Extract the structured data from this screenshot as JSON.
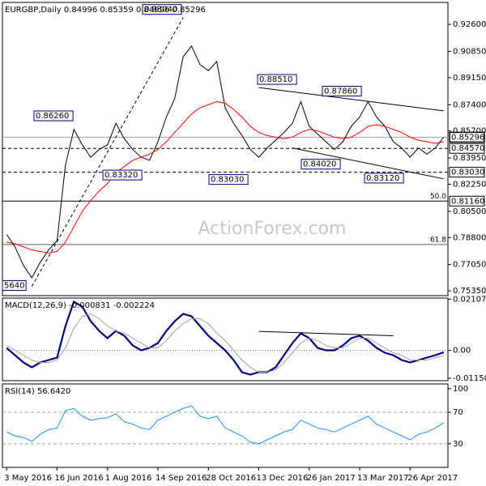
{
  "chart_data": [
    {
      "type": "line",
      "title": "EURGBP,Daily  0.84996 0.85359 0.84996 0.85296",
      "watermark": "ActionForex.com",
      "ylim": [
        0.7504,
        0.9402
      ],
      "yticks": [
        {
          "value": 0.926,
          "label": "0.92600"
        },
        {
          "value": 0.9085,
          "label": "0.90850"
        },
        {
          "value": 0.8915,
          "label": "0.89150"
        },
        {
          "value": 0.874,
          "label": "0.87400"
        },
        {
          "value": 0.857,
          "label": "0.85700"
        },
        {
          "value": 0.8395,
          "label": "0.83950"
        },
        {
          "value": 0.8225,
          "label": "0.82250"
        },
        {
          "value": 0.805,
          "label": "0.80500"
        },
        {
          "value": 0.788,
          "label": "0.78800"
        },
        {
          "value": 0.7705,
          "label": "0.77050"
        },
        {
          "value": 0.7535,
          "label": "0.75350"
        }
      ],
      "series": [
        {
          "name": "Close",
          "color": "#000000",
          "values": [
            0.79,
            0.782,
            0.77,
            0.762,
            0.772,
            0.78,
            0.786,
            0.835,
            0.858,
            0.848,
            0.84,
            0.845,
            0.848,
            0.862,
            0.852,
            0.845,
            0.84,
            0.838,
            0.85,
            0.866,
            0.878,
            0.905,
            0.912,
            0.9,
            0.896,
            0.902,
            0.872,
            0.862,
            0.854,
            0.845,
            0.84,
            0.846,
            0.851,
            0.856,
            0.862,
            0.876,
            0.86,
            0.855,
            0.85,
            0.845,
            0.85,
            0.86,
            0.866,
            0.876,
            0.866,
            0.86,
            0.85,
            0.846,
            0.84,
            0.846,
            0.842,
            0.846,
            0.853
          ]
        },
        {
          "name": "SMA",
          "color": "#ff0000",
          "values": [
            0.785,
            0.784,
            0.782,
            0.78,
            0.779,
            0.778,
            0.779,
            0.785,
            0.795,
            0.805,
            0.812,
            0.818,
            0.823,
            0.83,
            0.834,
            0.838,
            0.84,
            0.842,
            0.845,
            0.85,
            0.856,
            0.862,
            0.868,
            0.872,
            0.874,
            0.876,
            0.875,
            0.871,
            0.866,
            0.86,
            0.856,
            0.854,
            0.853,
            0.852,
            0.853,
            0.856,
            0.858,
            0.857,
            0.855,
            0.853,
            0.852,
            0.853,
            0.856,
            0.86,
            0.861,
            0.86,
            0.858,
            0.856,
            0.853,
            0.851,
            0.85,
            0.849,
            0.85
          ]
        }
      ],
      "levels": [
        {
          "value": 0.85296,
          "style": "solid",
          "color": "#a0a0a0"
        },
        {
          "value": 0.8457,
          "style": "dashed",
          "color": "#000000"
        },
        {
          "value": 0.8303,
          "style": "dashed",
          "color": "#000000"
        },
        {
          "value": 0.8116,
          "style": "solid",
          "color": "#000000"
        },
        {
          "value": 0.7835,
          "style": "solid",
          "color": "#606060"
        }
      ],
      "fib_labels": [
        {
          "value": 0.8116,
          "label": "50.0"
        },
        {
          "value": 0.7835,
          "label": "61.8"
        }
      ],
      "trendlines": [
        {
          "from": [
            3,
            0.7564
          ],
          "to": [
            21,
            0.9304
          ],
          "style": "dashed"
        },
        {
          "from": [
            30,
            0.8851
          ],
          "to": [
            52,
            0.87
          ],
          "style": "solid"
        },
        {
          "from": [
            34,
            0.846
          ],
          "to": [
            52,
            0.826
          ],
          "style": "solid"
        }
      ],
      "annotations": [
        {
          "value": 0.9304,
          "label": "0.93040"
        },
        {
          "value": 0.8626,
          "label": "0.86260"
        },
        {
          "value": 0.8332,
          "label": "0.83320"
        },
        {
          "value": 0.8303,
          "label": "0.83030"
        },
        {
          "value": 0.8851,
          "label": "0.88510"
        },
        {
          "value": 0.8786,
          "label": "0.87860"
        },
        {
          "value": 0.8402,
          "label": "0.84020"
        },
        {
          "value": 0.8312,
          "label": "0.83120"
        },
        {
          "value": 0.7564,
          "label": "5640"
        }
      ],
      "price_markers": [
        {
          "value": 0.85296,
          "label": "0.85296"
        },
        {
          "value": 0.8457,
          "label": "0.84570"
        },
        {
          "value": 0.8303,
          "label": "0.83030"
        },
        {
          "value": 0.8116,
          "label": "0.81160"
        }
      ]
    },
    {
      "type": "line",
      "title": "MACD(12,26,9) -0.000831 -0.002224",
      "ylim": [
        -0.0125,
        0.0215
      ],
      "yticks": [
        0.021074,
        {
          "value": 0,
          "label": "0.00"
        },
        -0.011507
      ],
      "series": [
        {
          "name": "MACD",
          "color": "#000080",
          "values": [
            0.001,
            -0.002,
            -0.005,
            -0.007,
            -0.005,
            -0.004,
            -0.003,
            0.01,
            0.02,
            0.018,
            0.012,
            0.008,
            0.005,
            0.008,
            0.006,
            0.002,
            0.0,
            0.001,
            0.003,
            0.008,
            0.012,
            0.015,
            0.014,
            0.01,
            0.006,
            0.003,
            0.0,
            -0.004,
            -0.009,
            -0.01,
            -0.009,
            -0.009,
            -0.007,
            -0.002,
            0.003,
            0.007,
            0.005,
            0.001,
            0.0,
            0.0,
            0.002,
            0.005,
            0.006,
            0.004,
            0.001,
            -0.001,
            -0.002,
            -0.004,
            -0.005,
            -0.004,
            -0.003,
            -0.002,
            -0.0008
          ]
        },
        {
          "name": "Signal",
          "color": "#a0a0a0",
          "values": [
            0.002,
            0.0,
            -0.002,
            -0.004,
            -0.005,
            -0.005,
            -0.004,
            0.001,
            0.009,
            0.014,
            0.015,
            0.013,
            0.01,
            0.008,
            0.007,
            0.005,
            0.003,
            0.001,
            0.001,
            0.004,
            0.008,
            0.011,
            0.013,
            0.013,
            0.011,
            0.007,
            0.004,
            0.0,
            -0.004,
            -0.007,
            -0.009,
            -0.009,
            -0.008,
            -0.005,
            -0.001,
            0.003,
            0.005,
            0.004,
            0.002,
            0.001,
            0.001,
            0.003,
            0.005,
            0.005,
            0.003,
            0.001,
            -0.001,
            -0.002,
            -0.004,
            -0.004,
            -0.004,
            -0.003,
            -0.0022
          ]
        }
      ],
      "levels": [
        {
          "value": 0,
          "style": "dotted",
          "color": "#808080"
        }
      ],
      "trendlines": [
        {
          "from": [
            30,
            0.0078
          ],
          "to": [
            46,
            0.006
          ],
          "style": "solid"
        }
      ]
    },
    {
      "type": "line",
      "title": "RSI(14) 56.6420",
      "ylim": [
        0,
        106
      ],
      "yticks": [
        100,
        70,
        30
      ],
      "categories": [
        "3 May 2016",
        null,
        null,
        null,
        null,
        null,
        "16 Jun 2016",
        null,
        null,
        null,
        null,
        null,
        "1 Aug 2016",
        null,
        null,
        null,
        null,
        null,
        "14 Sep 2016",
        null,
        null,
        null,
        null,
        null,
        "28 Oct 2016",
        null,
        null,
        null,
        null,
        null,
        "13 Dec 2016",
        null,
        null,
        null,
        null,
        null,
        "26 Jan 2017",
        null,
        null,
        null,
        null,
        null,
        "13 Mar 2017",
        null,
        null,
        null,
        null,
        null,
        "26 Apr 2017",
        null,
        null,
        null,
        null
      ],
      "series": [
        {
          "name": "RSI",
          "color": "#1e90ff",
          "values": [
            45,
            40,
            38,
            33,
            42,
            48,
            50,
            72,
            75,
            65,
            60,
            62,
            63,
            68,
            58,
            55,
            50,
            48,
            60,
            65,
            70,
            75,
            78,
            65,
            62,
            65,
            50,
            45,
            40,
            32,
            30,
            35,
            40,
            45,
            48,
            60,
            55,
            50,
            48,
            45,
            50,
            55,
            60,
            65,
            55,
            50,
            45,
            40,
            35,
            42,
            45,
            50,
            56.642
          ]
        }
      ],
      "levels": [
        {
          "value": 70,
          "style": "dashed",
          "color": "#a0a0a0"
        },
        {
          "value": 30,
          "style": "dashed",
          "color": "#a0a0a0"
        }
      ]
    }
  ]
}
